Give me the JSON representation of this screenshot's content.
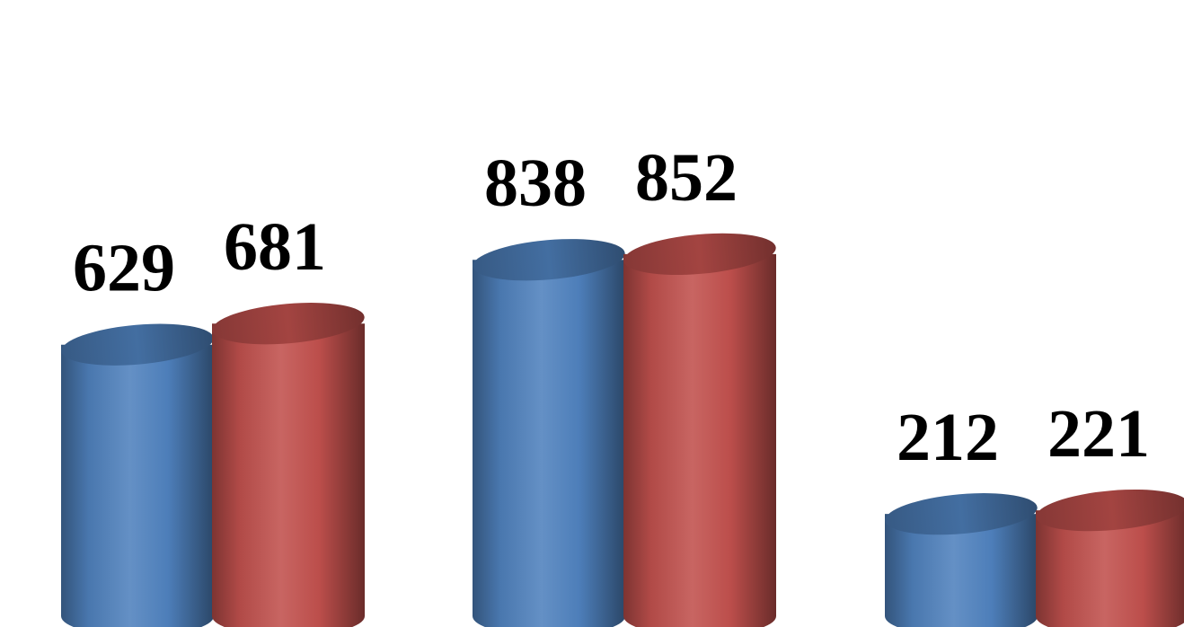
{
  "chart_data": {
    "type": "bar",
    "style": "3d-cylinder",
    "categories": [
      "",
      "",
      ""
    ],
    "series": [
      {
        "values": [
          629,
          838,
          212
        ],
        "color": "#4F81BD"
      },
      {
        "values": [
          681,
          852,
          221
        ],
        "color": "#C0504D"
      }
    ],
    "title": "",
    "xlabel": "",
    "ylabel": "",
    "grid": false,
    "legend": "none",
    "data_labels": true
  }
}
